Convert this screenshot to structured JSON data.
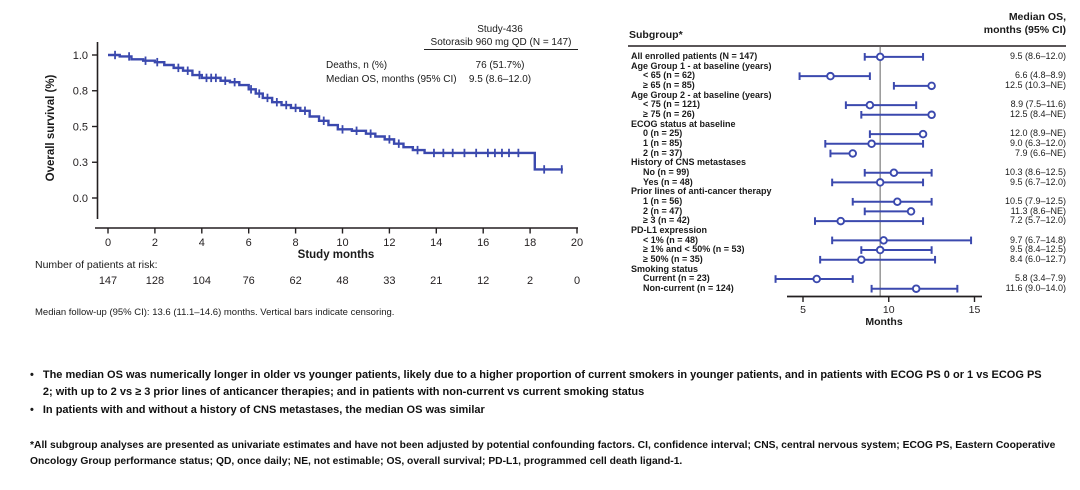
{
  "colors": {
    "series": "#3b49ae",
    "axis": "#231f20",
    "ref_line": "#8f8f8f",
    "background": "#ffffff"
  },
  "bullet_char": "•",
  "km_panel": {
    "ylabel": "Overall survival (%)",
    "xlabel": "Study months",
    "at_risk_label": "Number of patients at risk:",
    "footnote": "Median follow-up (95% CI): 13.6 (11.1–14.6) months. Vertical bars indicate censoring.",
    "info_title": "Study-436",
    "info_arm": "Sotorasib 960 mg QD (N = 147)",
    "info_rows": [
      {
        "label": "Deaths, n (%)",
        "value": "76 (51.7%)"
      },
      {
        "label": "Median OS, months (95% CI)",
        "value": "9.5 (8.6–12.0)"
      }
    ]
  },
  "forest_panel": {
    "col_subgroup_header": "Subgroup*",
    "col_value_header_line1": "Median OS,",
    "col_value_header_line2": "months (95% CI)",
    "xlabel": "Months"
  },
  "bullets": [
    "The median OS was numerically longer in older vs younger patients, likely due to a higher proportion of current smokers in younger patients, and in patients with ECOG PS 0 or 1 vs ECOG PS 2; with up to 2 vs ≥ 3 prior lines of anticancer therapies; and in patients with non-current vs current smoking status",
    "In patients with and without a history of CNS metastases, the median OS was similar"
  ],
  "abbreviations_footnote": "*All subgroup analyses are presented as univariate estimates and have not been adjusted by potential confounding factors. CI, confidence interval; CNS, central nervous system; ECOG PS, Eastern Cooperative Oncology Group performance status; QD, once daily; NE, not estimable; OS, overall survival; PD-L1, programmed cell death ligand-1.",
  "chart_data": [
    {
      "type": "line",
      "subtype": "kaplan-meier",
      "title": "Study-436",
      "subtitle": "Sotorasib 960 mg QD (N = 147)",
      "xlabel": "Study months",
      "ylabel": "Overall survival (%)",
      "xlim": [
        0,
        20
      ],
      "ylim": [
        0,
        1.0
      ],
      "xticks": [
        0,
        2,
        4,
        6,
        8,
        10,
        12,
        14,
        16,
        18,
        20
      ],
      "yticks": [
        {
          "v": 0.0,
          "label": "0.0"
        },
        {
          "v": 0.25,
          "label": "0.3"
        },
        {
          "v": 0.5,
          "label": "0.5"
        },
        {
          "v": 0.75,
          "label": "0.8"
        },
        {
          "v": 1.0,
          "label": "1.0"
        }
      ],
      "deaths_n_pct": "76 (51.7%)",
      "median_os_months_95ci": "9.5 (8.6–12.0)",
      "median_followup_months_95ci": "13.6 (11.1–14.6)",
      "km_steps": [
        [
          0,
          1.0
        ],
        [
          0.5,
          0.99
        ],
        [
          1.0,
          0.97
        ],
        [
          1.5,
          0.96
        ],
        [
          2.0,
          0.95
        ],
        [
          2.4,
          0.93
        ],
        [
          2.8,
          0.91
        ],
        [
          3.2,
          0.89
        ],
        [
          3.6,
          0.86
        ],
        [
          4.0,
          0.84
        ],
        [
          4.8,
          0.82
        ],
        [
          5.2,
          0.81
        ],
        [
          5.6,
          0.79
        ],
        [
          6.0,
          0.76
        ],
        [
          6.3,
          0.73
        ],
        [
          6.6,
          0.7
        ],
        [
          7.0,
          0.67
        ],
        [
          7.4,
          0.65
        ],
        [
          7.8,
          0.63
        ],
        [
          8.2,
          0.61
        ],
        [
          8.6,
          0.57
        ],
        [
          9.0,
          0.54
        ],
        [
          9.4,
          0.51
        ],
        [
          9.8,
          0.48
        ],
        [
          10.4,
          0.47
        ],
        [
          11.0,
          0.45
        ],
        [
          11.4,
          0.43
        ],
        [
          11.8,
          0.41
        ],
        [
          12.2,
          0.38
        ],
        [
          12.6,
          0.355
        ],
        [
          13.0,
          0.335
        ],
        [
          13.5,
          0.315
        ],
        [
          18.2,
          0.2
        ],
        [
          19.4,
          0.2
        ]
      ],
      "censor_marks": [
        0.3,
        0.9,
        1.6,
        2.1,
        3.0,
        3.4,
        3.9,
        4.2,
        4.4,
        4.6,
        5.0,
        5.4,
        6.1,
        6.45,
        6.8,
        7.2,
        7.6,
        8.0,
        8.4,
        9.2,
        10.0,
        10.6,
        11.2,
        12.0,
        12.4,
        13.2,
        13.9,
        14.3,
        14.7,
        15.2,
        15.7,
        16.2,
        16.5,
        16.8,
        17.1,
        17.5,
        18.6,
        19.35
      ],
      "at_risk": {
        "label": "Number of patients at risk:",
        "months": [
          0,
          2,
          4,
          6,
          8,
          10,
          12,
          14,
          16,
          18,
          20
        ],
        "counts": [
          147,
          128,
          104,
          76,
          62,
          48,
          33,
          21,
          12,
          2,
          0
        ]
      }
    },
    {
      "type": "forest",
      "xlabel": "Months",
      "xticks": [
        5,
        10,
        15
      ],
      "ref_line": 9.5,
      "value_header": "Median OS, months (95% CI)",
      "rows": [
        {
          "label": "All enrolled patients (N = 147)",
          "bold": true,
          "indent": 0,
          "est": 9.5,
          "lo": 8.6,
          "hi": 12.0,
          "ne": false,
          "value": "9.5 (8.6–12.0)"
        },
        {
          "label": "Age Group 1 - at baseline (years)",
          "bold": true,
          "indent": 0
        },
        {
          "label": "< 65 (n = 62)",
          "indent": 1,
          "est": 6.6,
          "lo": 4.8,
          "hi": 8.9,
          "ne": false,
          "value": "6.6 (4.8–8.9)"
        },
        {
          "label": "≥ 65 (n = 85)",
          "indent": 1,
          "est": 12.5,
          "lo": 10.3,
          "hi": null,
          "ne": true,
          "value": "12.5 (10.3–NE)"
        },
        {
          "label": "Age Group 2 - at baseline (years)",
          "bold": true,
          "indent": 0
        },
        {
          "label": "< 75 (n = 121)",
          "indent": 1,
          "est": 8.9,
          "lo": 7.5,
          "hi": 11.6,
          "ne": false,
          "value": "8.9 (7.5–11.6)"
        },
        {
          "label": "≥ 75 (n = 26)",
          "indent": 1,
          "est": 12.5,
          "lo": 8.4,
          "hi": null,
          "ne": true,
          "value": "12.5 (8.4–NE)"
        },
        {
          "label": "ECOG status at baseline",
          "bold": true,
          "indent": 0
        },
        {
          "label": "0 (n = 25)",
          "indent": 1,
          "est": 12.0,
          "lo": 8.9,
          "hi": null,
          "ne": true,
          "value": "12.0 (8.9–NE)"
        },
        {
          "label": "1 (n = 85)",
          "indent": 1,
          "est": 9.0,
          "lo": 6.3,
          "hi": 12.0,
          "ne": false,
          "value": "9.0 (6.3–12.0)"
        },
        {
          "label": "2 (n = 37)",
          "indent": 1,
          "est": 7.9,
          "lo": 6.6,
          "hi": null,
          "ne": true,
          "value": "7.9 (6.6–NE)"
        },
        {
          "label": "History of CNS metastases",
          "bold": true,
          "indent": 0
        },
        {
          "label": "No (n = 99)",
          "indent": 1,
          "est": 10.3,
          "lo": 8.6,
          "hi": 12.5,
          "ne": false,
          "value": "10.3 (8.6–12.5)"
        },
        {
          "label": "Yes (n = 48)",
          "indent": 1,
          "est": 9.5,
          "lo": 6.7,
          "hi": 12.0,
          "ne": false,
          "value": "9.5 (6.7–12.0)"
        },
        {
          "label": "Prior lines of anti-cancer therapy",
          "bold": true,
          "indent": 0
        },
        {
          "label": "1 (n = 56)",
          "indent": 1,
          "est": 10.5,
          "lo": 7.9,
          "hi": 12.5,
          "ne": false,
          "value": "10.5 (7.9–12.5)"
        },
        {
          "label": "2 (n = 47)",
          "indent": 1,
          "est": 11.3,
          "lo": 8.6,
          "hi": null,
          "ne": true,
          "value": "11.3 (8.6–NE)"
        },
        {
          "label": "≥ 3 (n = 42)",
          "indent": 1,
          "est": 7.2,
          "lo": 5.7,
          "hi": 12.0,
          "ne": false,
          "value": "7.2 (5.7–12.0)"
        },
        {
          "label": "PD-L1 expression",
          "bold": true,
          "indent": 0
        },
        {
          "label": "< 1% (n = 48)",
          "indent": 1,
          "est": 9.7,
          "lo": 6.7,
          "hi": 14.8,
          "ne": false,
          "value": "9.7 (6.7–14.8)"
        },
        {
          "label": "≥ 1% and < 50% (n = 53)",
          "indent": 1,
          "est": 9.5,
          "lo": 8.4,
          "hi": 12.5,
          "ne": false,
          "value": "9.5 (8.4–12.5)"
        },
        {
          "label": "≥ 50% (n = 35)",
          "indent": 1,
          "est": 8.4,
          "lo": 6.0,
          "hi": 12.7,
          "ne": false,
          "value": "8.4 (6.0–12.7)"
        },
        {
          "label": "Smoking status",
          "bold": true,
          "indent": 0
        },
        {
          "label": "Current (n = 23)",
          "indent": 1,
          "est": 5.8,
          "lo": 3.4,
          "hi": 7.9,
          "ne": false,
          "value": "5.8 (3.4–7.9)"
        },
        {
          "label": "Non-current (n = 124)",
          "indent": 1,
          "est": 11.6,
          "lo": 9.0,
          "hi": 14.0,
          "ne": false,
          "value": "11.6 (9.0–14.0)"
        }
      ]
    }
  ]
}
